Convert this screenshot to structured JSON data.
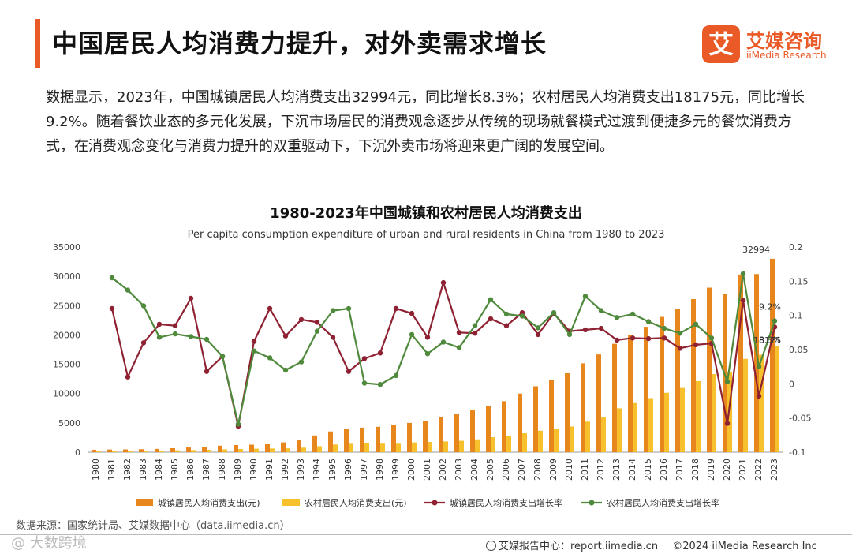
{
  "header": {
    "title": "中国居民人均消费力提升，对外卖需求增长",
    "logo_mark": "艾",
    "logo_cn": "艾媒咨询",
    "logo_en": "iiMedia Research"
  },
  "body_text": "数据显示，2023年，中国城镇居民人均消费支出32994元，同比增长8.3%；农村居民人均消费支出18175元，同比增长9.2%。随着餐饮业态的多元化发展，下沉市场居民的消费观念逐步从传统的现场就餐模式过渡到便捷多元的餐饮消费方式，在消费观念变化与消费力提升的双重驱动下，下沉外卖市场将迎来更广阔的发展空间。",
  "chart_data": {
    "type": "bar",
    "title": "1980-2023年中国城镇和农村居民人均消费支出",
    "subtitle": "Per capita consumption expenditure of urban and rural residents in China from 1980 to 2023",
    "categories": [
      "1980",
      "1981",
      "1982",
      "1983",
      "1984",
      "1985",
      "1986",
      "1987",
      "1988",
      "1989",
      "1990",
      "1991",
      "1992",
      "1993",
      "1994",
      "1995",
      "1996",
      "1997",
      "1998",
      "1999",
      "2000",
      "2001",
      "2002",
      "2003",
      "2004",
      "2005",
      "2006",
      "2007",
      "2008",
      "2009",
      "2010",
      "2011",
      "2012",
      "2013",
      "2014",
      "2015",
      "2016",
      "2017",
      "2018",
      "2019",
      "2020",
      "2021",
      "2022",
      "2023"
    ],
    "left_axis": {
      "min": 0,
      "max": 35000,
      "ticks": [
        "0",
        "5000",
        "10000",
        "15000",
        "20000",
        "25000",
        "30000",
        "35000"
      ]
    },
    "right_axis": {
      "min": -0.1,
      "max": 0.2,
      "ticks": [
        "-0.1",
        "-0.05",
        "0",
        "0.05",
        "0.1",
        "0.15",
        "0.2"
      ]
    },
    "series": [
      {
        "name": "城镇居民人均消费支出(元)",
        "kind": "bar",
        "axis": "left",
        "color": "#e8861e",
        "values": [
          412,
          457,
          471,
          506,
          559,
          673,
          799,
          884,
          1104,
          1211,
          1279,
          1454,
          1672,
          2111,
          2851,
          3538,
          3919,
          4186,
          4332,
          4616,
          4998,
          5309,
          6030,
          6511,
          7182,
          7943,
          8697,
          9997,
          11243,
          12265,
          13471,
          15161,
          16674,
          18488,
          19968,
          21392,
          23079,
          24445,
          26112,
          28063,
          27007,
          30307,
          30391,
          32994
        ]
      },
      {
        "name": "农村居民人均消费支出(元)",
        "kind": "bar",
        "axis": "left",
        "color": "#f6c12c",
        "values": [
          162,
          191,
          220,
          248,
          273,
          317,
          357,
          398,
          477,
          535,
          585,
          620,
          659,
          770,
          1017,
          1310,
          1572,
          1617,
          1590,
          1577,
          1670,
          1741,
          1834,
          1943,
          2185,
          2555,
          2829,
          3224,
          3661,
          3993,
          4382,
          5221,
          5908,
          7485,
          8383,
          9223,
          10130,
          10955,
          12124,
          13328,
          13713,
          15916,
          16632,
          18175
        ]
      },
      {
        "name": "城镇居民人均消费支出增长率",
        "kind": "line",
        "axis": "right",
        "color": "#8f2232",
        "values": [
          null,
          0.11,
          0.01,
          0.06,
          0.087,
          0.085,
          0.125,
          0.018,
          0.04,
          -0.062,
          0.062,
          0.11,
          0.07,
          0.094,
          0.09,
          0.068,
          0.018,
          0.037,
          0.045,
          0.11,
          0.103,
          0.068,
          0.148,
          0.075,
          0.074,
          0.095,
          0.085,
          0.104,
          0.072,
          0.103,
          0.077,
          0.079,
          0.081,
          0.064,
          0.067,
          0.066,
          0.067,
          0.052,
          0.057,
          0.059,
          -0.058,
          0.122,
          -0.018,
          0.083
        ]
      },
      {
        "name": "农村居民人均消费支出增长率",
        "kind": "line",
        "axis": "right",
        "color": "#4f8a3c",
        "values": [
          null,
          0.155,
          0.137,
          0.114,
          0.068,
          0.073,
          0.069,
          0.065,
          0.04,
          -0.059,
          0.048,
          0.038,
          0.02,
          0.032,
          0.077,
          0.107,
          0.11,
          0.001,
          -0.001,
          0.012,
          0.072,
          0.044,
          0.061,
          0.053,
          0.085,
          0.123,
          0.102,
          0.099,
          0.082,
          0.104,
          0.072,
          0.128,
          0.107,
          0.097,
          0.102,
          0.091,
          0.081,
          0.074,
          0.087,
          0.067,
          0.003,
          0.161,
          0.025,
          0.092
        ]
      }
    ],
    "annotations": {
      "urban_last_value": "32994",
      "rural_last_value": "18175",
      "urban_growth_last": "8.3%",
      "rural_growth_last": "9.2%"
    },
    "legend_position": "bottom"
  },
  "source": "数据来源：国家统计局、艾媒数据中心（data.iimedia.cn）",
  "footer": {
    "watermark": "@ 大数跨境",
    "report_site": "艾媒报告中心：report.iimedia.cn",
    "copyright": "©2024  iiMedia Research  Inc"
  }
}
